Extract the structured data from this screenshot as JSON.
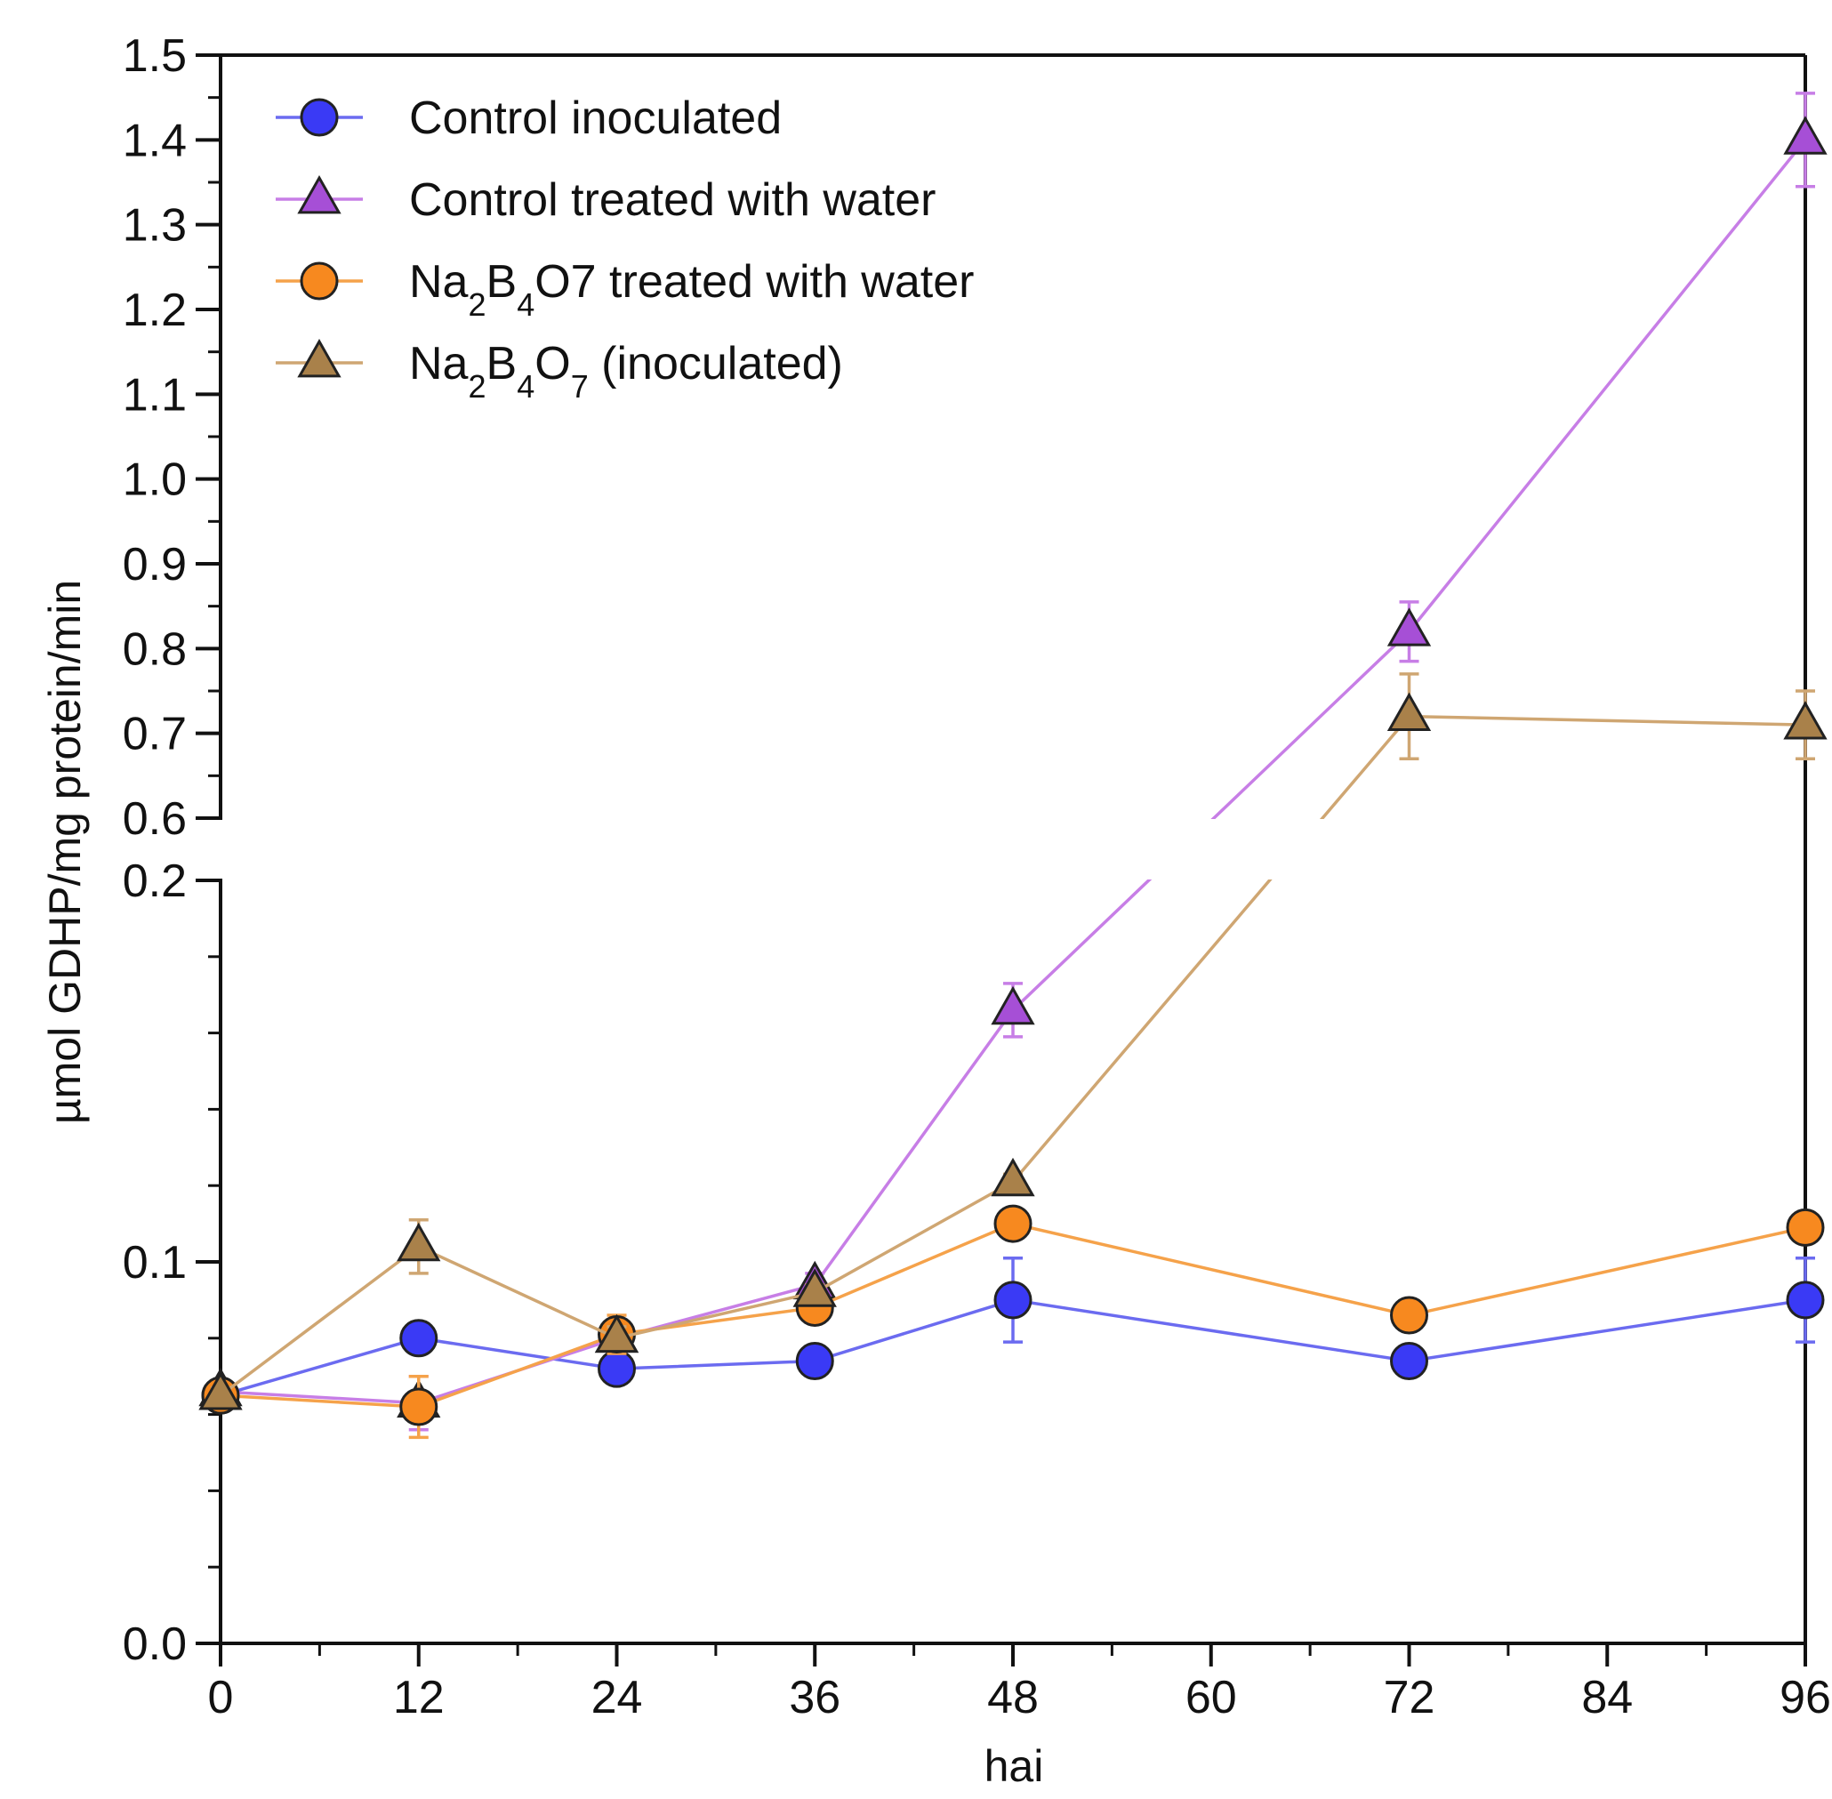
{
  "chart_data": {
    "type": "line",
    "title": "",
    "xlabel": "hai",
    "ylabel": "µmol GDHP/mg protein/min",
    "x": [
      0,
      12,
      24,
      36,
      48,
      72,
      96
    ],
    "xticks": [
      "0",
      "12",
      "24",
      "36",
      "48",
      "60",
      "72",
      "84",
      "96"
    ],
    "xlim": [
      0,
      96
    ],
    "y_axis": {
      "broken": true,
      "lower_range": [
        0.0,
        0.2
      ],
      "upper_range": [
        0.6,
        1.5
      ],
      "lower_ticks": [
        "0.0",
        "0.1",
        "0.2"
      ],
      "upper_ticks": [
        "0.6",
        "0.7",
        "0.8",
        "0.9",
        "1.0",
        "1.1",
        "1.2",
        "1.3",
        "1.4",
        "1.5"
      ]
    },
    "legend_position": "top-left",
    "series": [
      {
        "name_parts": [
          {
            "t": "Control inoculated"
          }
        ],
        "marker": "circle",
        "color": "#6b6bf0",
        "fill": "#3a3af5",
        "values": [
          0.065,
          0.08,
          0.072,
          0.074,
          0.09,
          0.074,
          0.09
        ],
        "errors": [
          0.002,
          0.002,
          0.002,
          0.002,
          0.011,
          0.002,
          0.011
        ]
      },
      {
        "name_parts": [
          {
            "t": "Control treated with water"
          }
        ],
        "marker": "triangle",
        "color": "#c77ee6",
        "fill": "#a64fd6",
        "values": [
          0.066,
          0.063,
          0.08,
          0.094,
          0.166,
          0.82,
          1.4
        ],
        "errors": [
          0.002,
          0.007,
          0.003,
          0.003,
          0.007,
          0.035,
          0.055
        ]
      },
      {
        "name_parts": [
          {
            "t": "Na"
          },
          {
            "t": "2",
            "sub": true
          },
          {
            "t": "B"
          },
          {
            "t": "4",
            "sub": true
          },
          {
            "t": "O7 treated with water"
          }
        ],
        "marker": "circle",
        "color": "#f5a24a",
        "fill": "#f7891f",
        "values": [
          0.065,
          0.062,
          0.081,
          0.088,
          0.11,
          0.086,
          0.109
        ],
        "errors": [
          0.002,
          0.008,
          0.005,
          0.002,
          0.002,
          0.002,
          0.002
        ]
      },
      {
        "name_parts": [
          {
            "t": "Na"
          },
          {
            "t": "2",
            "sub": true
          },
          {
            "t": "B"
          },
          {
            "t": "4",
            "sub": true
          },
          {
            "t": "O"
          },
          {
            "t": "7",
            "sub": true
          },
          {
            "t": " (inoculated)"
          }
        ],
        "marker": "triangle",
        "color": "#cfa672",
        "fill": "#a9814a",
        "values": [
          0.065,
          0.104,
          0.08,
          0.092,
          0.121,
          0.72,
          0.71
        ],
        "errors": [
          0.002,
          0.007,
          0.003,
          0.002,
          0.002,
          0.05,
          0.04
        ]
      }
    ]
  }
}
